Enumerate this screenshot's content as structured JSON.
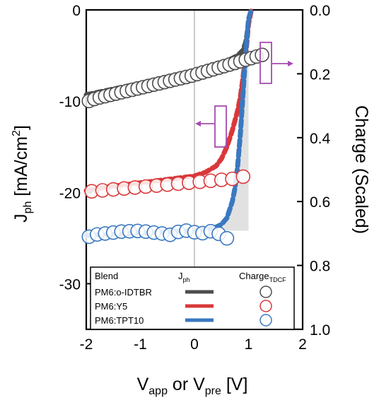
{
  "chart_data": {
    "type": "line",
    "x_axis": {
      "label_base": "V",
      "label_sub1": "app",
      "label_mid": " or V",
      "label_sub2": "pre",
      "label_end": " [V]",
      "range": [
        -2,
        2
      ],
      "ticks": [
        "-2",
        "-1",
        "0",
        "1",
        "2"
      ]
    },
    "y_left": {
      "label_base": "J",
      "label_sub": "ph",
      "label_end": " [mA/cm",
      "label_sup": "2",
      "label_close": "]",
      "range": [
        -35,
        0
      ],
      "ticks": [
        "0",
        "-10",
        "-20",
        "-30"
      ]
    },
    "y_right": {
      "label": "Charge (Scaled)",
      "range": [
        0,
        1
      ],
      "inverted": true,
      "ticks": [
        "0.0",
        "0.2",
        "0.4",
        "0.6",
        "0.8",
        "1.0"
      ]
    },
    "legend": {
      "col_blend": "Blend",
      "col_j_base": "J",
      "col_j_sub": "ph",
      "col_charge_base": "Charge",
      "col_charge_sub": "TDCF",
      "entries": [
        {
          "name": "PM6:o-IDTBR",
          "color": "#4d4d4d"
        },
        {
          "name": "PM6:Y5",
          "color": "#d9383a"
        },
        {
          "name": "PM6:TPT10",
          "color": "#3a78c0"
        }
      ]
    },
    "series": [
      {
        "name": "PM6:o-IDTBR",
        "kind": "jph",
        "color": "#4d4d4d",
        "x": [
          -2.0,
          -1.6,
          -1.2,
          -0.8,
          -0.4,
          0.0,
          0.4,
          0.6,
          0.8,
          0.9,
          0.95,
          1.0,
          1.05
        ],
        "y": [
          -9.3,
          -8.8,
          -8.3,
          -7.8,
          -7.3,
          -6.8,
          -6.0,
          -5.6,
          -5.0,
          -4.4,
          -3.5,
          -1.5,
          0.0
        ]
      },
      {
        "name": "PM6:Y5",
        "kind": "jph",
        "color": "#d9383a",
        "x": [
          -2.0,
          -1.6,
          -1.2,
          -0.8,
          -0.4,
          0.0,
          0.2,
          0.4,
          0.5,
          0.6,
          0.7,
          0.8,
          0.85,
          0.9,
          0.95,
          1.0,
          1.05
        ],
        "y": [
          -19.8,
          -19.4,
          -19.1,
          -18.8,
          -18.5,
          -18.2,
          -17.8,
          -17.1,
          -16.3,
          -15.0,
          -13.2,
          -11.0,
          -9.5,
          -7.3,
          -4.8,
          -1.5,
          0.0
        ]
      },
      {
        "name": "PM6:TPT10",
        "kind": "jph",
        "color": "#3a78c0",
        "x": [
          -2.0,
          -1.6,
          -1.2,
          -0.8,
          -0.4,
          0.0,
          0.2,
          0.4,
          0.5,
          0.6,
          0.7,
          0.75,
          0.8,
          0.85,
          0.9,
          0.95,
          1.0,
          1.05
        ],
        "y": [
          -24.7,
          -24.6,
          -24.5,
          -24.4,
          -24.3,
          -24.2,
          -24.1,
          -23.8,
          -23.5,
          -22.8,
          -21.0,
          -19.5,
          -17.0,
          -13.5,
          -9.0,
          -4.5,
          -1.0,
          0.0
        ]
      },
      {
        "name": "PM6:o-IDTBR",
        "kind": "charge",
        "color": "#4d4d4d",
        "x": [
          -1.95,
          -1.85,
          -1.75,
          -1.65,
          -1.55,
          -1.45,
          -1.35,
          -1.25,
          -1.15,
          -1.05,
          -0.95,
          -0.85,
          -0.75,
          -0.65,
          -0.55,
          -0.45,
          -0.35,
          -0.25,
          -0.15,
          -0.05,
          0.05,
          0.15,
          0.25,
          0.35,
          0.45,
          0.55,
          0.65,
          0.75,
          0.85,
          0.95,
          1.05,
          1.15,
          1.25
        ],
        "y": [
          0.285,
          0.279,
          0.274,
          0.27,
          0.266,
          0.262,
          0.258,
          0.254,
          0.25,
          0.246,
          0.242,
          0.238,
          0.234,
          0.23,
          0.226,
          0.222,
          0.218,
          0.214,
          0.21,
          0.206,
          0.201,
          0.196,
          0.191,
          0.186,
          0.181,
          0.176,
          0.171,
          0.166,
          0.161,
          0.156,
          0.151,
          0.146,
          0.141
        ]
      },
      {
        "name": "PM6:Y5",
        "kind": "charge",
        "color": "#d9383a",
        "x": [
          -1.9,
          -1.7,
          -1.5,
          -1.3,
          -1.1,
          -0.9,
          -0.7,
          -0.5,
          -0.3,
          -0.1,
          0.1,
          0.3,
          0.5,
          0.7,
          0.9
        ],
        "y": [
          0.568,
          0.565,
          0.562,
          0.559,
          0.556,
          0.553,
          0.55,
          0.547,
          0.544,
          0.541,
          0.538,
          0.535,
          0.532,
          0.529,
          0.522
        ]
      },
      {
        "name": "PM6:TPT10",
        "kind": "charge",
        "color": "#3a78c0",
        "x": [
          -1.95,
          -1.8,
          -1.65,
          -1.5,
          -1.35,
          -1.2,
          -1.05,
          -0.9,
          -0.75,
          -0.6,
          -0.45,
          -0.3,
          -0.15,
          0.0,
          0.15,
          0.3,
          0.45,
          0.6
        ],
        "y": [
          0.71,
          0.703,
          0.7,
          0.697,
          0.694,
          0.693,
          0.692,
          0.694,
          0.697,
          0.7,
          0.704,
          0.695,
          0.691,
          0.696,
          0.699,
          0.693,
          0.701,
          0.715
        ]
      }
    ]
  }
}
